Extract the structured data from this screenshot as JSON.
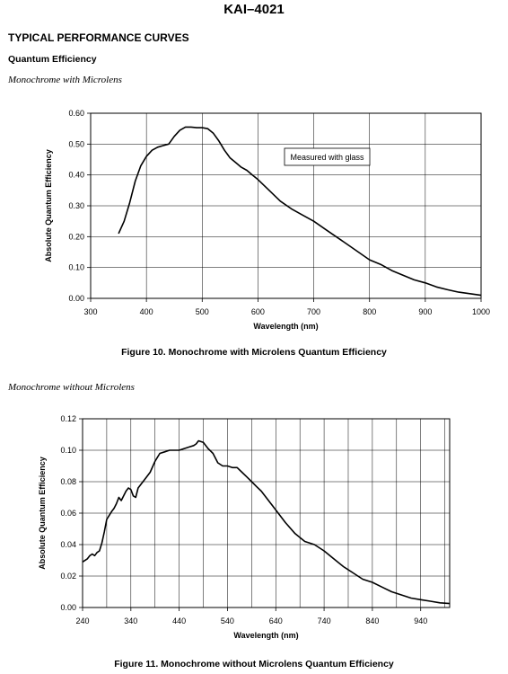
{
  "header": {
    "doc_title": "KAI–4021",
    "section_title": "TYPICAL PERFORMANCE CURVES",
    "subsection_title": "Quantum Efficiency"
  },
  "chart_data": [
    {
      "type": "line",
      "heading": "Monochrome with Microlens",
      "caption": "Figure 10. Monochrome with Microlens Quantum Efficiency",
      "xlabel": "Wavelength (nm)",
      "ylabel": "Absolute Quantum Efficiency",
      "xlim": [
        300,
        1000
      ],
      "ylim": [
        0,
        0.6
      ],
      "x_ticks": [
        300,
        400,
        500,
        600,
        700,
        800,
        900,
        1000
      ],
      "x_tick_labels": [
        "300",
        "400",
        "500",
        "600",
        "700",
        "800",
        "900",
        "1000"
      ],
      "y_ticks": [
        0,
        0.1,
        0.2,
        0.3,
        0.4,
        0.5,
        0.6
      ],
      "y_tick_labels": [
        "0.00",
        "0.10",
        "0.20",
        "0.30",
        "0.40",
        "0.50",
        "0.60"
      ],
      "grid": true,
      "annotation": "Measured with glass",
      "series": [
        {
          "x": [
            350,
            360,
            370,
            380,
            390,
            400,
            410,
            420,
            430,
            440,
            450,
            460,
            470,
            480,
            490,
            500,
            510,
            520,
            530,
            540,
            550,
            560,
            570,
            580,
            590,
            600,
            620,
            640,
            660,
            680,
            700,
            720,
            740,
            760,
            780,
            800,
            820,
            840,
            860,
            880,
            900,
            920,
            940,
            960,
            980,
            1000
          ],
          "y": [
            0.21,
            0.25,
            0.31,
            0.38,
            0.43,
            0.46,
            0.48,
            0.49,
            0.495,
            0.5,
            0.525,
            0.545,
            0.555,
            0.555,
            0.553,
            0.553,
            0.55,
            0.535,
            0.51,
            0.48,
            0.455,
            0.44,
            0.425,
            0.415,
            0.4,
            0.385,
            0.35,
            0.315,
            0.29,
            0.27,
            0.25,
            0.225,
            0.2,
            0.175,
            0.15,
            0.125,
            0.11,
            0.09,
            0.075,
            0.06,
            0.05,
            0.037,
            0.028,
            0.02,
            0.015,
            0.01
          ]
        }
      ]
    },
    {
      "type": "line",
      "heading": "Monochrome without Microlens",
      "caption": "Figure 11. Monochrome without Microlens Quantum Efficiency",
      "xlabel": "Wavelength (nm)",
      "ylabel": "Absolute Quantum Efficiency",
      "xlim": [
        240,
        1000
      ],
      "ylim": [
        0,
        0.12
      ],
      "x_ticks": [
        240,
        340,
        440,
        540,
        640,
        740,
        840,
        940
      ],
      "x_tick_labels": [
        "240",
        "340",
        "440",
        "540",
        "640",
        "740",
        "840",
        "940"
      ],
      "x_grid": [
        240,
        290,
        340,
        390,
        440,
        490,
        540,
        590,
        640,
        690,
        740,
        790,
        840,
        890,
        940,
        990
      ],
      "y_ticks": [
        0,
        0.02,
        0.04,
        0.06,
        0.08,
        0.1,
        0.12
      ],
      "y_tick_labels": [
        "0.00",
        "0.02",
        "0.04",
        "0.06",
        "0.08",
        "0.10",
        "0.12"
      ],
      "grid": true,
      "series": [
        {
          "x": [
            240,
            250,
            255,
            260,
            265,
            270,
            275,
            280,
            285,
            290,
            300,
            305,
            310,
            315,
            320,
            330,
            335,
            340,
            345,
            350,
            355,
            360,
            370,
            380,
            390,
            400,
            410,
            420,
            430,
            440,
            450,
            460,
            470,
            475,
            480,
            490,
            500,
            510,
            520,
            530,
            540,
            550,
            560,
            570,
            580,
            590,
            600,
            610,
            620,
            630,
            640,
            660,
            680,
            700,
            720,
            740,
            760,
            780,
            800,
            820,
            840,
            860,
            880,
            900,
            920,
            940,
            960,
            980,
            1000
          ],
          "y": [
            0.029,
            0.031,
            0.033,
            0.034,
            0.033,
            0.035,
            0.036,
            0.041,
            0.048,
            0.056,
            0.061,
            0.063,
            0.066,
            0.07,
            0.068,
            0.074,
            0.076,
            0.075,
            0.071,
            0.07,
            0.076,
            0.078,
            0.082,
            0.086,
            0.093,
            0.098,
            0.099,
            0.1,
            0.1,
            0.1,
            0.101,
            0.102,
            0.103,
            0.104,
            0.106,
            0.105,
            0.101,
            0.098,
            0.092,
            0.09,
            0.09,
            0.089,
            0.089,
            0.086,
            0.083,
            0.08,
            0.077,
            0.074,
            0.07,
            0.066,
            0.062,
            0.054,
            0.047,
            0.042,
            0.04,
            0.036,
            0.031,
            0.026,
            0.022,
            0.018,
            0.016,
            0.013,
            0.01,
            0.008,
            0.006,
            0.005,
            0.004,
            0.003,
            0.0025
          ]
        }
      ]
    }
  ]
}
